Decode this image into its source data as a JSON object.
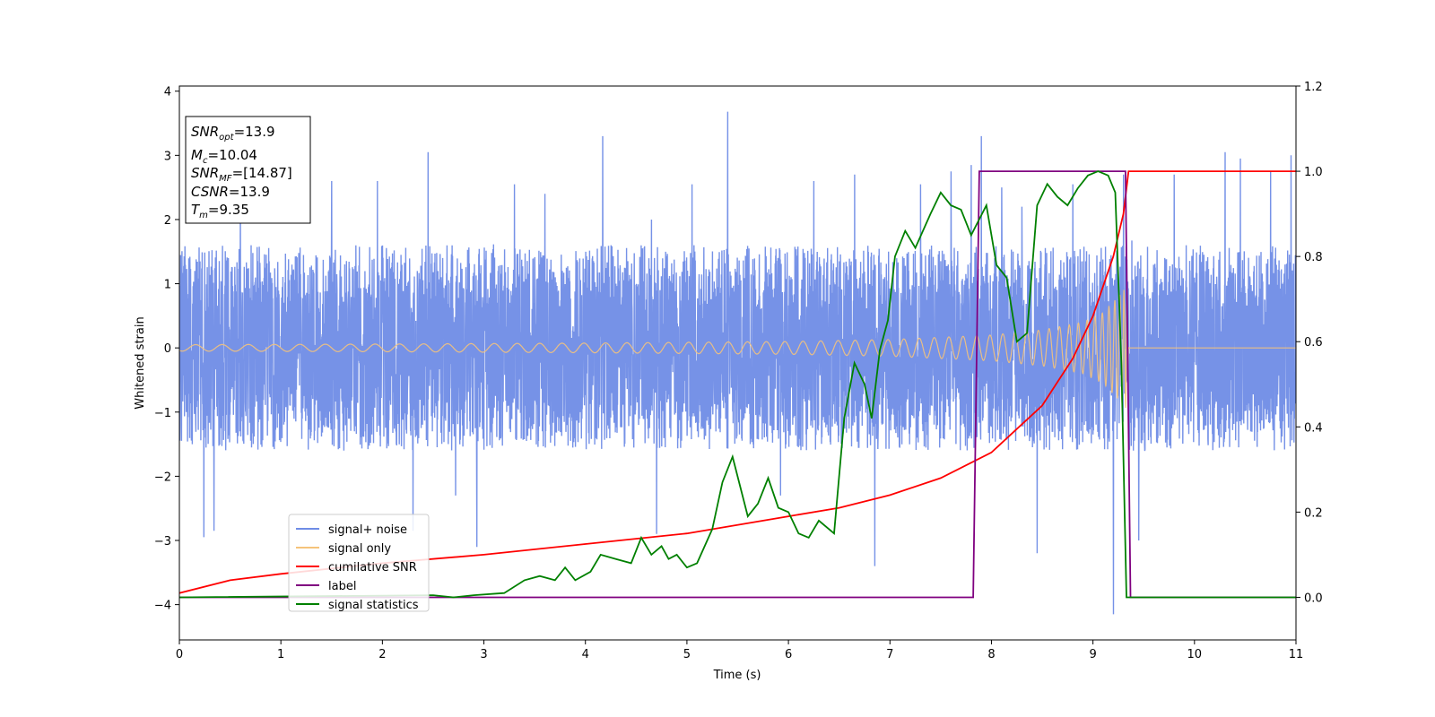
{
  "chart_data": {
    "type": "line",
    "xlabel": "Time (s)",
    "ylabel": "Whitened strain",
    "xlim": [
      0,
      11
    ],
    "ylim_left": [
      -4.55,
      4.08
    ],
    "ylim_right": [
      -0.1,
      1.2
    ],
    "x_ticks": [
      "0",
      "1",
      "2",
      "3",
      "4",
      "5",
      "6",
      "7",
      "8",
      "9",
      "10",
      "11"
    ],
    "y_ticks_left": [
      "−4",
      "−3",
      "−2",
      "−1",
      "0",
      "1",
      "2",
      "3",
      "4"
    ],
    "y_ticks_right": [
      "0.0",
      "0.2",
      "0.4",
      "0.6",
      "0.8",
      "1.0",
      "1.2"
    ],
    "grid": false,
    "legend_position": "lower-left",
    "annotation": {
      "snr_opt": {
        "base": "SNR",
        "sub": "opt",
        "val": "=13.9"
      },
      "mc": {
        "base": "M",
        "sub": "c",
        "val": "=10.04"
      },
      "snr_mf": {
        "base": "SNR",
        "sub": "MF",
        "val": "=[14.87]"
      },
      "csnr": {
        "base": "CSNR",
        "val": "=13.9"
      },
      "tm": {
        "base": "T",
        "sub": "m",
        "val": "=9.35"
      }
    },
    "series": [
      {
        "name": "signal+ noise",
        "axis": "left",
        "color": "#6f8ce6",
        "kind": "noise",
        "x_range": [
          0,
          11
        ],
        "typical_amplitude": [
          -1.8,
          1.8
        ],
        "peak_values": [
          [
            0.24,
            -2.95
          ],
          [
            0.34,
            -2.85
          ],
          [
            0.6,
            2.42
          ],
          [
            1.5,
            2.6
          ],
          [
            1.95,
            2.6
          ],
          [
            2.3,
            -2.85
          ],
          [
            2.45,
            3.05
          ],
          [
            2.72,
            -2.3
          ],
          [
            2.93,
            -3.1
          ],
          [
            3.3,
            2.55
          ],
          [
            3.6,
            2.4
          ],
          [
            4.17,
            3.3
          ],
          [
            4.65,
            2.0
          ],
          [
            4.7,
            -2.9
          ],
          [
            5.05,
            2.55
          ],
          [
            5.4,
            3.68
          ],
          [
            5.92,
            -2.3
          ],
          [
            6.25,
            2.6
          ],
          [
            6.65,
            2.7
          ],
          [
            6.85,
            -3.4
          ],
          [
            7.3,
            2.55
          ],
          [
            7.6,
            2.75
          ],
          [
            7.8,
            2.85
          ],
          [
            7.9,
            3.3
          ],
          [
            8.1,
            2.5
          ],
          [
            8.3,
            2.2
          ],
          [
            8.45,
            -3.2
          ],
          [
            8.8,
            2.55
          ],
          [
            9.3,
            2.7
          ],
          [
            9.2,
            -4.15
          ],
          [
            9.45,
            -3.0
          ],
          [
            9.8,
            2.7
          ],
          [
            10.3,
            3.05
          ],
          [
            10.45,
            2.95
          ],
          [
            10.75,
            2.75
          ],
          [
            10.95,
            3.0
          ]
        ]
      },
      {
        "name": "signal only",
        "axis": "left",
        "color": "#f5c37b",
        "kind": "chirp",
        "amplitude_points": [
          [
            0,
            0.05
          ],
          [
            2,
            0.06
          ],
          [
            4,
            0.075
          ],
          [
            6,
            0.1
          ],
          [
            7,
            0.13
          ],
          [
            8,
            0.2
          ],
          [
            8.5,
            0.28
          ],
          [
            8.9,
            0.4
          ],
          [
            9.1,
            0.55
          ],
          [
            9.25,
            0.8
          ],
          [
            9.33,
            0.95
          ],
          [
            9.35,
            0.0
          ],
          [
            11,
            0.0
          ]
        ]
      },
      {
        "name": "cumilative SNR",
        "axis": "right",
        "color": "#ff0000",
        "x": [
          0,
          0.5,
          1,
          2,
          3,
          4,
          5,
          6,
          6.5,
          7,
          7.5,
          8,
          8.5,
          8.8,
          9.0,
          9.2,
          9.3,
          9.35,
          11
        ],
        "y": [
          0.01,
          0.04,
          0.055,
          0.08,
          0.1,
          0.125,
          0.15,
          0.19,
          0.21,
          0.24,
          0.28,
          0.34,
          0.45,
          0.56,
          0.66,
          0.8,
          0.9,
          1.0,
          1.0
        ]
      },
      {
        "name": "label",
        "axis": "right",
        "color": "#800080",
        "x": [
          0,
          7.82,
          7.88,
          9.32,
          9.37,
          11
        ],
        "y": [
          0.0,
          0.0,
          1.0,
          1.0,
          0.0,
          0.0
        ]
      },
      {
        "name": "signal statistics",
        "axis": "right",
        "color": "#008000",
        "x": [
          0,
          2.5,
          2.7,
          2.9,
          3.2,
          3.4,
          3.55,
          3.7,
          3.8,
          3.9,
          4.05,
          4.15,
          4.3,
          4.45,
          4.55,
          4.65,
          4.75,
          4.82,
          4.9,
          5.0,
          5.1,
          5.25,
          5.35,
          5.45,
          5.6,
          5.7,
          5.8,
          5.9,
          6.0,
          6.1,
          6.2,
          6.3,
          6.45,
          6.55,
          6.65,
          6.75,
          6.82,
          6.9,
          6.98,
          7.05,
          7.15,
          7.25,
          7.4,
          7.5,
          7.6,
          7.7,
          7.8,
          7.95,
          8.05,
          8.15,
          8.25,
          8.35,
          8.45,
          8.55,
          8.65,
          8.75,
          8.85,
          8.95,
          9.05,
          9.15,
          9.22,
          9.28,
          9.33,
          9.38,
          9.45,
          11
        ],
        "y": [
          0.0,
          0.005,
          0.0,
          0.005,
          0.01,
          0.04,
          0.05,
          0.04,
          0.07,
          0.04,
          0.06,
          0.1,
          0.09,
          0.08,
          0.14,
          0.1,
          0.12,
          0.09,
          0.1,
          0.07,
          0.08,
          0.16,
          0.27,
          0.33,
          0.19,
          0.22,
          0.28,
          0.21,
          0.2,
          0.15,
          0.14,
          0.18,
          0.15,
          0.42,
          0.55,
          0.5,
          0.42,
          0.58,
          0.65,
          0.8,
          0.86,
          0.82,
          0.9,
          0.95,
          0.92,
          0.91,
          0.85,
          0.92,
          0.78,
          0.75,
          0.6,
          0.62,
          0.92,
          0.97,
          0.94,
          0.92,
          0.96,
          0.99,
          1.0,
          0.99,
          0.95,
          0.55,
          0.0,
          0.0,
          0.0,
          0.0
        ]
      }
    ]
  }
}
